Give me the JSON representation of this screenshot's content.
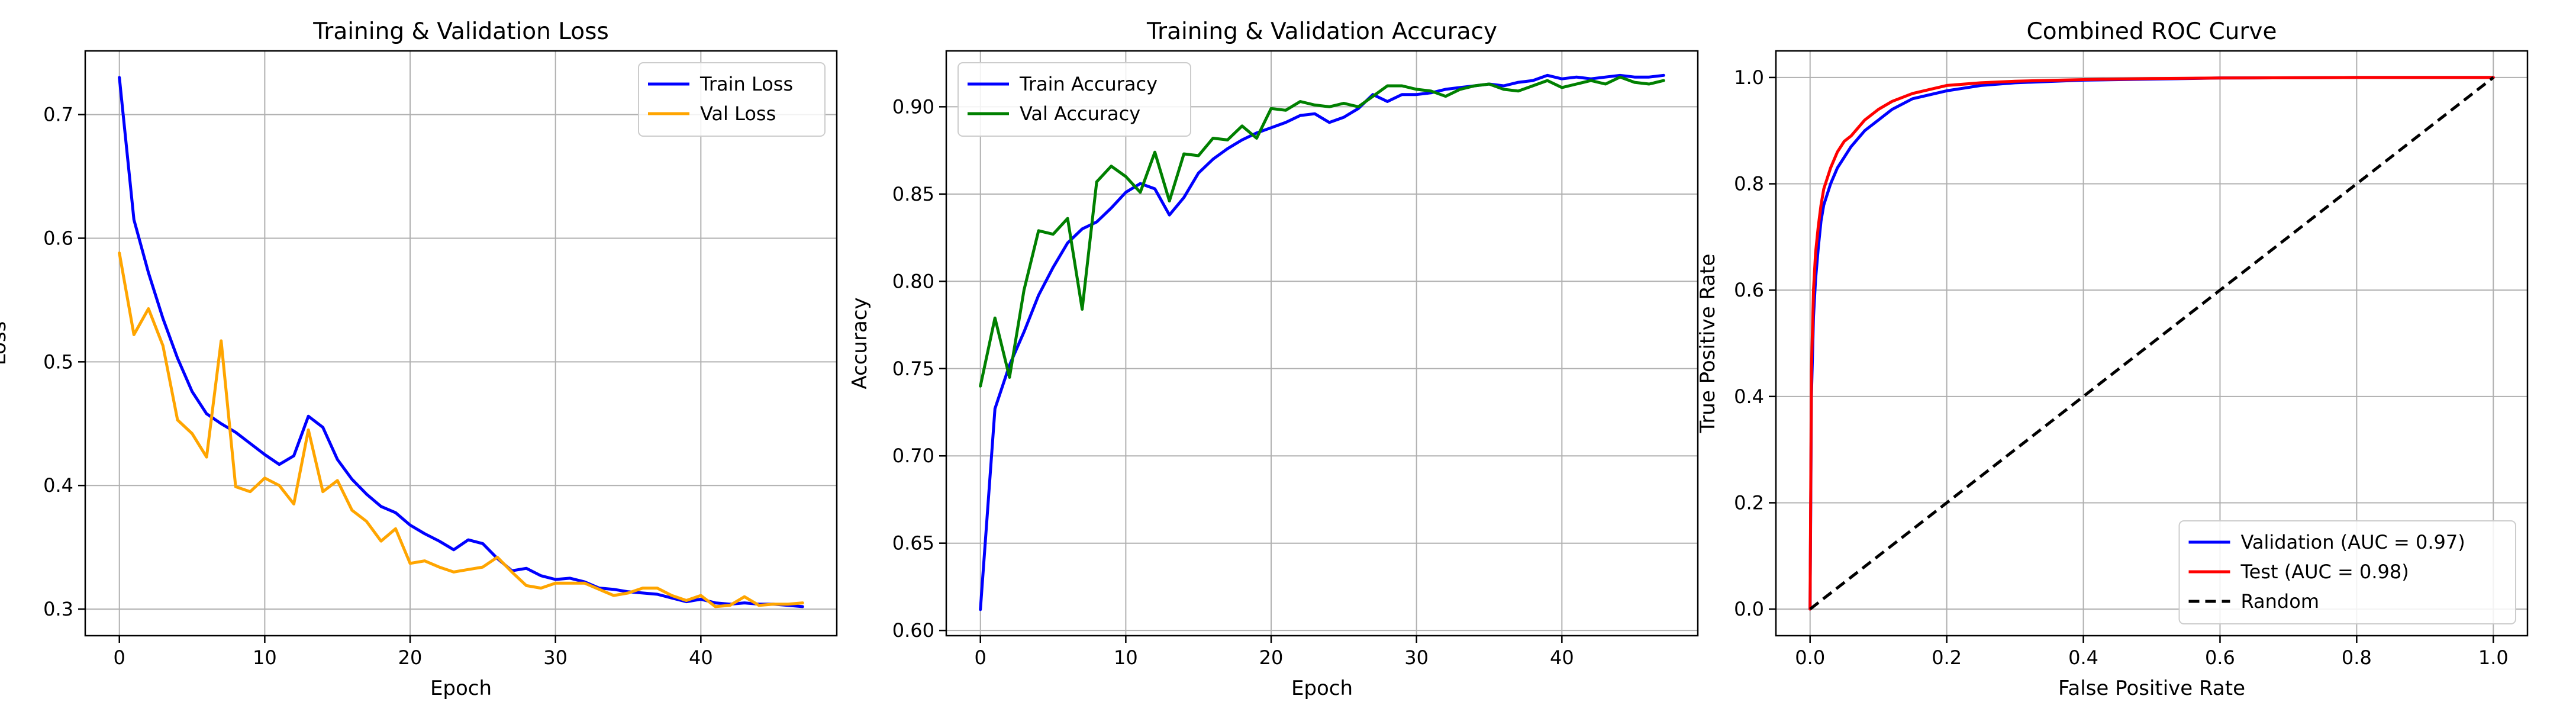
{
  "chart_data": [
    {
      "type": "line",
      "title": "Training & Validation Loss",
      "xlabel": "Epoch",
      "ylabel": "Loss",
      "xlim": [
        -2.35,
        49.35
      ],
      "ylim": [
        0.2785,
        0.7515
      ],
      "xticks": [
        0,
        10,
        20,
        30,
        40
      ],
      "xtick_labels": [
        "0",
        "10",
        "20",
        "30",
        "40"
      ],
      "yticks": [
        0.3,
        0.4,
        0.5,
        0.6,
        0.7
      ],
      "ytick_labels": [
        "0.3",
        "0.4",
        "0.5",
        "0.6",
        "0.7"
      ],
      "grid": true,
      "legend_position": "top-right",
      "series": [
        {
          "name": "Train Loss",
          "color": "#0000ff",
          "x": [
            0,
            1,
            2,
            3,
            4,
            5,
            6,
            7,
            8,
            9,
            10,
            11,
            12,
            13,
            14,
            15,
            16,
            17,
            18,
            19,
            20,
            21,
            22,
            23,
            24,
            25,
            26,
            27,
            28,
            29,
            30,
            31,
            32,
            33,
            34,
            35,
            36,
            37,
            38,
            39,
            40,
            41,
            42,
            43,
            44,
            45,
            46,
            47
          ],
          "values": [
            0.73,
            0.615,
            0.572,
            0.535,
            0.503,
            0.476,
            0.458,
            0.45,
            0.443,
            0.434,
            0.425,
            0.417,
            0.424,
            0.456,
            0.447,
            0.421,
            0.405,
            0.393,
            0.383,
            0.378,
            0.368,
            0.361,
            0.355,
            0.348,
            0.356,
            0.353,
            0.341,
            0.331,
            0.333,
            0.327,
            0.324,
            0.325,
            0.322,
            0.317,
            0.316,
            0.314,
            0.313,
            0.312,
            0.309,
            0.306,
            0.308,
            0.305,
            0.304,
            0.305,
            0.304,
            0.304,
            0.303,
            0.302
          ]
        },
        {
          "name": "Val Loss",
          "color": "#ffa500",
          "x": [
            0,
            1,
            2,
            3,
            4,
            5,
            6,
            7,
            8,
            9,
            10,
            11,
            12,
            13,
            14,
            15,
            16,
            17,
            18,
            19,
            20,
            21,
            22,
            23,
            24,
            25,
            26,
            27,
            28,
            29,
            30,
            31,
            32,
            33,
            34,
            35,
            36,
            37,
            38,
            39,
            40,
            41,
            42,
            43,
            44,
            45,
            46,
            47
          ],
          "values": [
            0.588,
            0.522,
            0.543,
            0.513,
            0.453,
            0.442,
            0.423,
            0.517,
            0.399,
            0.395,
            0.406,
            0.4,
            0.385,
            0.445,
            0.395,
            0.404,
            0.38,
            0.371,
            0.355,
            0.365,
            0.337,
            0.339,
            0.334,
            0.33,
            0.332,
            0.334,
            0.342,
            0.33,
            0.319,
            0.317,
            0.321,
            0.321,
            0.321,
            0.316,
            0.311,
            0.313,
            0.317,
            0.317,
            0.311,
            0.307,
            0.311,
            0.302,
            0.303,
            0.31,
            0.303,
            0.304,
            0.304,
            0.305
          ]
        }
      ]
    },
    {
      "type": "line",
      "title": "Training & Validation Accuracy",
      "xlabel": "Epoch",
      "ylabel": "Accuracy",
      "xlim": [
        -2.35,
        49.35
      ],
      "ylim": [
        0.597,
        0.932
      ],
      "xticks": [
        0,
        10,
        20,
        30,
        40
      ],
      "xtick_labels": [
        "0",
        "10",
        "20",
        "30",
        "40"
      ],
      "yticks": [
        0.6,
        0.65,
        0.7,
        0.75,
        0.8,
        0.85,
        0.9
      ],
      "ytick_labels": [
        "0.60",
        "0.65",
        "0.70",
        "0.75",
        "0.80",
        "0.85",
        "0.90"
      ],
      "grid": true,
      "legend_position": "top-left",
      "series": [
        {
          "name": "Train Accuracy",
          "color": "#0000ff",
          "x": [
            0,
            1,
            2,
            3,
            4,
            5,
            6,
            7,
            8,
            9,
            10,
            11,
            12,
            13,
            14,
            15,
            16,
            17,
            18,
            19,
            20,
            21,
            22,
            23,
            24,
            25,
            26,
            27,
            28,
            29,
            30,
            31,
            32,
            33,
            34,
            35,
            36,
            37,
            38,
            39,
            40,
            41,
            42,
            43,
            44,
            45,
            46,
            47
          ],
          "values": [
            0.612,
            0.727,
            0.752,
            0.771,
            0.792,
            0.808,
            0.822,
            0.83,
            0.834,
            0.842,
            0.851,
            0.856,
            0.853,
            0.838,
            0.848,
            0.862,
            0.87,
            0.876,
            0.881,
            0.885,
            0.888,
            0.891,
            0.895,
            0.896,
            0.891,
            0.894,
            0.899,
            0.907,
            0.903,
            0.907,
            0.907,
            0.908,
            0.91,
            0.911,
            0.912,
            0.913,
            0.912,
            0.914,
            0.915,
            0.918,
            0.916,
            0.917,
            0.916,
            0.917,
            0.918,
            0.917,
            0.917,
            0.918
          ]
        },
        {
          "name": "Val Accuracy",
          "color": "#008000",
          "x": [
            0,
            1,
            2,
            3,
            4,
            5,
            6,
            7,
            8,
            9,
            10,
            11,
            12,
            13,
            14,
            15,
            16,
            17,
            18,
            19,
            20,
            21,
            22,
            23,
            24,
            25,
            26,
            27,
            28,
            29,
            30,
            31,
            32,
            33,
            34,
            35,
            36,
            37,
            38,
            39,
            40,
            41,
            42,
            43,
            44,
            45,
            46,
            47
          ],
          "values": [
            0.74,
            0.779,
            0.745,
            0.795,
            0.829,
            0.827,
            0.836,
            0.784,
            0.857,
            0.866,
            0.86,
            0.851,
            0.874,
            0.846,
            0.873,
            0.872,
            0.882,
            0.881,
            0.889,
            0.882,
            0.899,
            0.898,
            0.903,
            0.901,
            0.9,
            0.902,
            0.9,
            0.906,
            0.912,
            0.912,
            0.91,
            0.909,
            0.906,
            0.91,
            0.912,
            0.913,
            0.91,
            0.909,
            0.912,
            0.915,
            0.911,
            0.913,
            0.915,
            0.913,
            0.917,
            0.914,
            0.913,
            0.915
          ]
        }
      ]
    },
    {
      "type": "line",
      "title": "Combined ROC Curve",
      "xlabel": "False Positive Rate",
      "ylabel": "True Positive Rate",
      "xlim": [
        -0.05,
        1.05
      ],
      "ylim": [
        -0.05,
        1.05
      ],
      "xticks": [
        0,
        0.2,
        0.4,
        0.6,
        0.8,
        1.0
      ],
      "xtick_labels": [
        "0.0",
        "0.2",
        "0.4",
        "0.6",
        "0.8",
        "1.0"
      ],
      "yticks": [
        0,
        0.2,
        0.4,
        0.6,
        0.8,
        1.0
      ],
      "ytick_labels": [
        "0.0",
        "0.2",
        "0.4",
        "0.6",
        "0.8",
        "1.0"
      ],
      "grid": true,
      "legend_position": "bottom-right",
      "series": [
        {
          "name": "Validation (AUC = 0.97)",
          "color": "#0000ff",
          "x": [
            0,
            0.002,
            0.005,
            0.008,
            0.012,
            0.016,
            0.02,
            0.03,
            0.04,
            0.05,
            0.06,
            0.08,
            0.1,
            0.12,
            0.15,
            0.2,
            0.25,
            0.3,
            0.4,
            0.5,
            0.6,
            0.8,
            1.0
          ],
          "values": [
            0,
            0.4,
            0.55,
            0.62,
            0.68,
            0.73,
            0.76,
            0.8,
            0.83,
            0.85,
            0.87,
            0.9,
            0.92,
            0.94,
            0.96,
            0.975,
            0.985,
            0.99,
            0.995,
            0.997,
            0.999,
            1.0,
            1.0
          ]
        },
        {
          "name": "Test (AUC = 0.98)",
          "color": "#ff0000",
          "x": [
            0,
            0.002,
            0.005,
            0.008,
            0.012,
            0.016,
            0.02,
            0.03,
            0.04,
            0.05,
            0.06,
            0.08,
            0.1,
            0.12,
            0.15,
            0.2,
            0.25,
            0.3,
            0.4,
            0.5,
            0.6,
            0.8,
            1.0
          ],
          "values": [
            0,
            0.45,
            0.6,
            0.67,
            0.72,
            0.76,
            0.79,
            0.83,
            0.86,
            0.88,
            0.89,
            0.92,
            0.94,
            0.955,
            0.97,
            0.985,
            0.99,
            0.993,
            0.996,
            0.998,
            0.999,
            1.0,
            1.0
          ]
        },
        {
          "name": "Random",
          "color": "#000000",
          "dashed": true,
          "x": [
            0,
            1
          ],
          "values": [
            0,
            1
          ]
        }
      ]
    }
  ]
}
